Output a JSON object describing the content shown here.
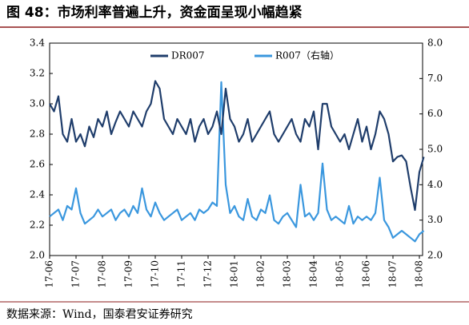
{
  "chart_data": {
    "type": "line",
    "title": "图 48：市场利率普遍上升，资金面呈现小幅趋紧",
    "source": "数据来源：Wind，国泰君安证券研究",
    "categories": [
      "17-06",
      null,
      null,
      null,
      null,
      null,
      "17-07",
      null,
      null,
      null,
      null,
      null,
      "17-08",
      null,
      null,
      null,
      null,
      null,
      "17-09",
      null,
      null,
      null,
      null,
      null,
      "17-10",
      null,
      null,
      null,
      null,
      null,
      "17-11",
      null,
      null,
      null,
      null,
      null,
      "17-12",
      null,
      null,
      null,
      null,
      null,
      "18-01",
      null,
      null,
      null,
      null,
      null,
      "18-02",
      null,
      null,
      null,
      null,
      null,
      "18-03",
      null,
      null,
      null,
      null,
      null,
      "18-04",
      null,
      null,
      null,
      null,
      null,
      "18-05",
      null,
      null,
      null,
      null,
      null,
      "18-06",
      null,
      null,
      null,
      null,
      null,
      "18-07",
      null,
      null,
      null,
      null,
      null,
      "18-08",
      null
    ],
    "series": [
      {
        "name": "DR007",
        "color": "#1f3d6b",
        "values": [
          3.0,
          2.95,
          3.05,
          2.8,
          2.75,
          2.9,
          2.75,
          2.8,
          2.72,
          2.85,
          2.78,
          2.9,
          2.85,
          2.95,
          2.8,
          2.88,
          2.95,
          2.9,
          2.85,
          2.95,
          2.9,
          2.85,
          2.95,
          3.0,
          3.15,
          3.1,
          2.9,
          2.85,
          2.8,
          2.9,
          2.85,
          2.8,
          2.9,
          2.75,
          2.85,
          2.9,
          2.8,
          2.85,
          2.95,
          2.8,
          3.1,
          2.9,
          2.85,
          2.75,
          2.8,
          2.9,
          2.75,
          2.8,
          2.85,
          2.9,
          2.95,
          2.8,
          2.75,
          2.8,
          2.85,
          2.9,
          2.8,
          2.75,
          2.9,
          2.85,
          2.95,
          2.7,
          3.0,
          3.0,
          2.85,
          2.8,
          2.75,
          2.8,
          2.7,
          2.8,
          2.9,
          2.75,
          2.85,
          2.7,
          2.8,
          2.95,
          2.9,
          2.8,
          2.62,
          2.65,
          2.66,
          2.62,
          2.45,
          2.3,
          2.55,
          2.65
        ]
      },
      {
        "name": "R007（右轴）",
        "color": "#3a97de",
        "axis": "y2",
        "values": [
          3.1,
          3.2,
          3.3,
          3.0,
          3.4,
          3.3,
          3.9,
          3.2,
          2.9,
          3.0,
          3.1,
          3.3,
          3.1,
          3.2,
          3.3,
          3.0,
          3.2,
          3.3,
          3.1,
          3.4,
          3.2,
          3.9,
          3.3,
          3.1,
          3.5,
          3.2,
          3.0,
          3.1,
          3.2,
          3.3,
          3.0,
          3.1,
          3.2,
          3.0,
          3.3,
          3.2,
          3.3,
          3.5,
          3.4,
          6.9,
          4.0,
          3.2,
          3.4,
          3.1,
          3.0,
          3.6,
          3.1,
          3.0,
          3.3,
          3.2,
          3.7,
          3.0,
          2.9,
          3.1,
          3.2,
          3.0,
          2.8,
          4.0,
          3.1,
          3.2,
          3.0,
          3.2,
          4.6,
          3.3,
          3.0,
          3.1,
          3.0,
          2.9,
          3.4,
          2.9,
          3.1,
          3.0,
          3.1,
          3.0,
          3.2,
          4.2,
          3.0,
          2.8,
          2.5,
          2.6,
          2.7,
          2.6,
          2.5,
          2.4,
          2.6,
          2.7
        ]
      }
    ],
    "ylim": [
      2.0,
      3.4
    ],
    "yticks": [
      {
        "value": 2,
        "label": "2.0"
      },
      2.2,
      2.4,
      2.6,
      2.8,
      {
        "value": 3,
        "label": "3.0"
      },
      3.2,
      3.4
    ],
    "y2lim": [
      2.0,
      8.0
    ],
    "y2ticks": [
      {
        "value": 2,
        "label": "2.0"
      },
      {
        "value": 3,
        "label": "3.0"
      },
      {
        "value": 4,
        "label": "4.0"
      },
      {
        "value": 5,
        "label": "5.0"
      },
      {
        "value": 6,
        "label": "6.0"
      },
      {
        "value": 7,
        "label": "7.0"
      },
      {
        "value": 8,
        "label": "8.0"
      }
    ],
    "legend": "top"
  }
}
